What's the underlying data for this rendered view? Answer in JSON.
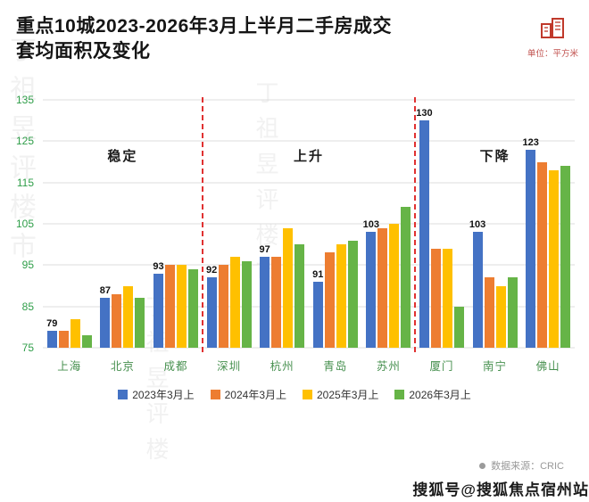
{
  "header": {
    "title_line1": "重点10城2023-2026年3月上半月二手房成交",
    "title_line2": "套均面积及变化",
    "unit_label": "单位：平方米"
  },
  "chart_data": {
    "type": "bar",
    "title": "重点10城2023-2026年3月上半月二手房成交套均面积及变化",
    "unit": "平方米",
    "categories": [
      "上海",
      "北京",
      "成都",
      "深圳",
      "杭州",
      "青岛",
      "苏州",
      "厦门",
      "南宁",
      "佛山"
    ],
    "series": [
      {
        "name": "2023年3月上",
        "color": "#4472c4",
        "values": [
          79,
          87,
          93,
          92,
          97,
          91,
          103,
          130,
          103,
          123
        ]
      },
      {
        "name": "2024年3月上",
        "color": "#ed7d31",
        "values": [
          79,
          88,
          95,
          95,
          97,
          98,
          104,
          99,
          92,
          120
        ]
      },
      {
        "name": "2025年3月上",
        "color": "#ffc000",
        "values": [
          82,
          90,
          95,
          97,
          104,
          100,
          105,
          99,
          90,
          118
        ]
      },
      {
        "name": "2026年3月上",
        "color": "#66b447",
        "values": [
          78,
          87,
          94,
          96,
          100,
          101,
          109,
          85,
          92,
          119
        ]
      }
    ],
    "data_labels": [
      79,
      87,
      93,
      92,
      97,
      91,
      103,
      130,
      103,
      123
    ],
    "ylim": [
      75,
      135
    ],
    "yticks": [
      75,
      85,
      95,
      105,
      115,
      125,
      135
    ],
    "sections": [
      {
        "label": "稳定",
        "center_pct": 15
      },
      {
        "label": "上升",
        "center_pct": 50
      },
      {
        "label": "下降",
        "center_pct": 85
      }
    ],
    "separators_after": [
      3,
      7
    ],
    "separator_color": "#e03131",
    "grid": true,
    "legend_position": "bottom"
  },
  "source": {
    "text": "数据来源：CRIC"
  },
  "footer": {
    "account_text": "搜狐号@搜狐焦点宿州站"
  },
  "watermark": {
    "text": "丁祖昱评楼市"
  }
}
